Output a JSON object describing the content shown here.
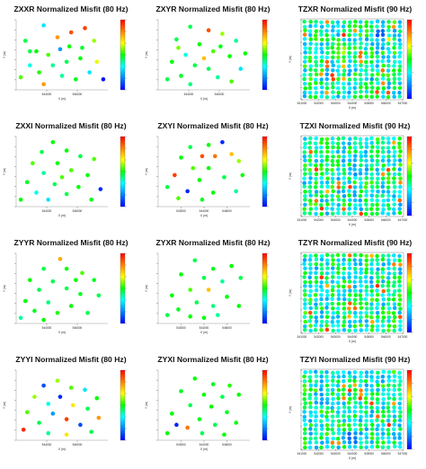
{
  "colors": {
    "colorbar_stops": [
      "#ff0000",
      "#ff8000",
      "#ffff00",
      "#00ff00",
      "#00ffff",
      "#0080ff",
      "#0000ff"
    ],
    "scatter_value_range": [
      0,
      1
    ]
  },
  "chart_data": [
    {
      "type": "scatter",
      "title": "ZXXR Normalized Misfit (80 Hz)",
      "xlabel": "X (m)",
      "ylabel": "Y (m)",
      "xticks": [
        "544000",
        "546000"
      ],
      "points": [
        {
          "x": 0.3,
          "y": 0.92,
          "v": 0.3
        },
        {
          "x": 0.45,
          "y": 0.75,
          "v": 0.8
        },
        {
          "x": 0.1,
          "y": 0.7,
          "v": 0.45
        },
        {
          "x": 0.22,
          "y": 0.55,
          "v": 0.5
        },
        {
          "x": 0.35,
          "y": 0.5,
          "v": 0.55
        },
        {
          "x": 0.6,
          "y": 0.82,
          "v": 0.9
        },
        {
          "x": 0.75,
          "y": 0.88,
          "v": 0.92
        },
        {
          "x": 0.85,
          "y": 0.7,
          "v": 0.6
        },
        {
          "x": 0.4,
          "y": 0.35,
          "v": 0.4
        },
        {
          "x": 0.55,
          "y": 0.4,
          "v": 0.45
        },
        {
          "x": 0.7,
          "y": 0.45,
          "v": 0.5
        },
        {
          "x": 0.88,
          "y": 0.4,
          "v": 0.65
        },
        {
          "x": 0.15,
          "y": 0.35,
          "v": 0.35
        },
        {
          "x": 0.25,
          "y": 0.25,
          "v": 0.52
        },
        {
          "x": 0.5,
          "y": 0.2,
          "v": 0.4
        },
        {
          "x": 0.65,
          "y": 0.15,
          "v": 0.48
        },
        {
          "x": 0.8,
          "y": 0.25,
          "v": 0.3
        },
        {
          "x": 0.95,
          "y": 0.15,
          "v": 0.02
        },
        {
          "x": 0.05,
          "y": 0.18,
          "v": 0.55
        },
        {
          "x": 0.3,
          "y": 0.08,
          "v": 0.8
        },
        {
          "x": 0.58,
          "y": 0.62,
          "v": 0.5
        },
        {
          "x": 0.48,
          "y": 0.58,
          "v": 0.2
        },
        {
          "x": 0.15,
          "y": 0.55,
          "v": 0.45
        },
        {
          "x": 0.72,
          "y": 0.6,
          "v": 0.47
        }
      ]
    },
    {
      "type": "scatter",
      "title": "ZXYR Normalized Misfit (80 Hz)",
      "xlabel": "X (m)",
      "ylabel": "Y (m)",
      "xticks": [
        "544000",
        "546000"
      ],
      "points": [
        {
          "x": 0.35,
          "y": 0.9,
          "v": 0.45
        },
        {
          "x": 0.55,
          "y": 0.85,
          "v": 0.9
        },
        {
          "x": 0.7,
          "y": 0.8,
          "v": 0.6
        },
        {
          "x": 0.2,
          "y": 0.72,
          "v": 0.45
        },
        {
          "x": 0.45,
          "y": 0.65,
          "v": 0.5
        },
        {
          "x": 0.85,
          "y": 0.7,
          "v": 0.4
        },
        {
          "x": 0.3,
          "y": 0.5,
          "v": 0.35
        },
        {
          "x": 0.6,
          "y": 0.55,
          "v": 0.55
        },
        {
          "x": 0.78,
          "y": 0.48,
          "v": 0.5
        },
        {
          "x": 0.15,
          "y": 0.4,
          "v": 0.5
        },
        {
          "x": 0.4,
          "y": 0.35,
          "v": 0.45
        },
        {
          "x": 0.55,
          "y": 0.3,
          "v": 0.45
        },
        {
          "x": 0.9,
          "y": 0.3,
          "v": 0.3
        },
        {
          "x": 0.25,
          "y": 0.2,
          "v": 0.48
        },
        {
          "x": 0.65,
          "y": 0.18,
          "v": 0.4
        },
        {
          "x": 0.8,
          "y": 0.12,
          "v": 0.55
        },
        {
          "x": 0.1,
          "y": 0.15,
          "v": 0.45
        },
        {
          "x": 0.35,
          "y": 0.08,
          "v": 0.42
        },
        {
          "x": 0.5,
          "y": 0.45,
          "v": 0.75
        },
        {
          "x": 0.68,
          "y": 0.62,
          "v": 0.48
        },
        {
          "x": 0.95,
          "y": 0.52,
          "v": 0.5
        },
        {
          "x": 0.22,
          "y": 0.6,
          "v": 0.58
        }
      ]
    },
    {
      "type": "scatter",
      "title": "TZXR Normalized Misfit (90 Hz)",
      "xlabel": "X (m)",
      "ylabel": "Y (m)",
      "xticks": [
        "541000",
        "542000",
        "543000",
        "544000",
        "545000",
        "546000",
        "547000"
      ],
      "grid_points": {
        "cols": 18,
        "rows": 18,
        "seed": 11,
        "hot_spots": [
          {
            "x": 0.78,
            "y": 0.8,
            "v": 0.05
          },
          {
            "x": 0.4,
            "y": 0.6,
            "v": 0.7
          }
        ]
      }
    },
    {
      "type": "scatter",
      "title": "ZXXI Normalized Misfit (80 Hz)",
      "xlabel": "X (m)",
      "ylabel": "Y (m)",
      "xticks": [
        "544000",
        "546000"
      ],
      "points": [
        {
          "x": 0.4,
          "y": 0.92,
          "v": 0.5
        },
        {
          "x": 0.28,
          "y": 0.78,
          "v": 0.45
        },
        {
          "x": 0.55,
          "y": 0.8,
          "v": 0.5
        },
        {
          "x": 0.7,
          "y": 0.72,
          "v": 0.45
        },
        {
          "x": 0.18,
          "y": 0.62,
          "v": 0.55
        },
        {
          "x": 0.45,
          "y": 0.62,
          "v": 0.5
        },
        {
          "x": 0.85,
          "y": 0.68,
          "v": 0.55
        },
        {
          "x": 0.3,
          "y": 0.48,
          "v": 0.4
        },
        {
          "x": 0.6,
          "y": 0.52,
          "v": 0.55
        },
        {
          "x": 0.78,
          "y": 0.45,
          "v": 0.5
        },
        {
          "x": 0.12,
          "y": 0.35,
          "v": 0.48
        },
        {
          "x": 0.42,
          "y": 0.32,
          "v": 0.45
        },
        {
          "x": 0.92,
          "y": 0.25,
          "v": 0.05
        },
        {
          "x": 0.22,
          "y": 0.2,
          "v": 0.35
        },
        {
          "x": 0.55,
          "y": 0.18,
          "v": 0.45
        },
        {
          "x": 0.05,
          "y": 0.1,
          "v": 0.5
        },
        {
          "x": 0.35,
          "y": 0.1,
          "v": 0.3
        },
        {
          "x": 0.68,
          "y": 0.28,
          "v": 0.5
        },
        {
          "x": 0.82,
          "y": 0.1,
          "v": 0.48
        },
        {
          "x": 0.5,
          "y": 0.42,
          "v": 0.55
        }
      ]
    },
    {
      "type": "scatter",
      "title": "ZXYI Normalized Misfit (80 Hz)",
      "xlabel": "X (m)",
      "ylabel": "Y (m)",
      "xticks": [
        "543000",
        "544000",
        "546000"
      ],
      "points": [
        {
          "x": 0.35,
          "y": 0.85,
          "v": 0.45
        },
        {
          "x": 0.55,
          "y": 0.88,
          "v": 0.5
        },
        {
          "x": 0.7,
          "y": 0.92,
          "v": 0.05
        },
        {
          "x": 0.8,
          "y": 0.75,
          "v": 0.75
        },
        {
          "x": 0.25,
          "y": 0.7,
          "v": 0.5
        },
        {
          "x": 0.48,
          "y": 0.72,
          "v": 0.9
        },
        {
          "x": 0.62,
          "y": 0.72,
          "v": 0.85
        },
        {
          "x": 0.88,
          "y": 0.65,
          "v": 0.6
        },
        {
          "x": 0.38,
          "y": 0.55,
          "v": 0.55
        },
        {
          "x": 0.55,
          "y": 0.55,
          "v": 0.5
        },
        {
          "x": 0.18,
          "y": 0.45,
          "v": 0.92
        },
        {
          "x": 0.45,
          "y": 0.38,
          "v": 0.5
        },
        {
          "x": 0.72,
          "y": 0.42,
          "v": 0.45
        },
        {
          "x": 0.1,
          "y": 0.28,
          "v": 0.45
        },
        {
          "x": 0.32,
          "y": 0.22,
          "v": 0.05
        },
        {
          "x": 0.6,
          "y": 0.2,
          "v": 0.5
        },
        {
          "x": 0.85,
          "y": 0.22,
          "v": 0.4
        },
        {
          "x": 0.22,
          "y": 0.12,
          "v": 0.55
        },
        {
          "x": 0.48,
          "y": 0.1,
          "v": 0.48
        },
        {
          "x": 0.92,
          "y": 0.45,
          "v": 0.5
        }
      ]
    },
    {
      "type": "scatter",
      "title": "TZXI Normalized Misfit (90 Hz)",
      "xlabel": "X (m)",
      "ylabel": "Y (m)",
      "xticks": [
        "541000",
        "542000",
        "543000",
        "544000",
        "545000",
        "546000",
        "547000"
      ],
      "grid_points": {
        "cols": 18,
        "rows": 18,
        "seed": 23,
        "hot_spots": [
          {
            "x": 0.55,
            "y": 0.55,
            "v": 0.15
          }
        ]
      }
    },
    {
      "type": "scatter",
      "title": "ZYYR Normalized Misfit (80 Hz)",
      "xlabel": "X (m)",
      "ylabel": "Y (m)",
      "xticks": [
        "544000",
        "546000"
      ],
      "points": [
        {
          "x": 0.48,
          "y": 0.92,
          "v": 0.78
        },
        {
          "x": 0.3,
          "y": 0.78,
          "v": 0.45
        },
        {
          "x": 0.55,
          "y": 0.78,
          "v": 0.5
        },
        {
          "x": 0.72,
          "y": 0.72,
          "v": 0.55
        },
        {
          "x": 0.15,
          "y": 0.62,
          "v": 0.5
        },
        {
          "x": 0.4,
          "y": 0.6,
          "v": 0.45
        },
        {
          "x": 0.85,
          "y": 0.62,
          "v": 0.48
        },
        {
          "x": 0.25,
          "y": 0.48,
          "v": 0.45
        },
        {
          "x": 0.55,
          "y": 0.5,
          "v": 0.45
        },
        {
          "x": 0.7,
          "y": 0.42,
          "v": 0.48
        },
        {
          "x": 0.9,
          "y": 0.4,
          "v": 0.45
        },
        {
          "x": 0.1,
          "y": 0.32,
          "v": 0.5
        },
        {
          "x": 0.35,
          "y": 0.3,
          "v": 0.42
        },
        {
          "x": 0.6,
          "y": 0.25,
          "v": 0.5
        },
        {
          "x": 0.2,
          "y": 0.18,
          "v": 0.48
        },
        {
          "x": 0.45,
          "y": 0.15,
          "v": 0.52
        },
        {
          "x": 0.05,
          "y": 0.08,
          "v": 0.4
        },
        {
          "x": 0.3,
          "y": 0.05,
          "v": 0.5
        },
        {
          "x": 0.78,
          "y": 0.15,
          "v": 0.45
        },
        {
          "x": 0.65,
          "y": 0.62,
          "v": 0.5
        }
      ]
    },
    {
      "type": "scatter",
      "title": "ZYXR Normalized Misfit (80 Hz)",
      "xlabel": "X (m)",
      "ylabel": "Y (m)",
      "xticks": [
        "543000",
        "544000",
        "546000"
      ],
      "points": [
        {
          "x": 0.4,
          "y": 0.9,
          "v": 0.45
        },
        {
          "x": 0.6,
          "y": 0.78,
          "v": 0.48
        },
        {
          "x": 0.8,
          "y": 0.82,
          "v": 0.5
        },
        {
          "x": 0.25,
          "y": 0.7,
          "v": 0.5
        },
        {
          "x": 0.5,
          "y": 0.65,
          "v": 0.45
        },
        {
          "x": 0.7,
          "y": 0.6,
          "v": 0.4
        },
        {
          "x": 0.9,
          "y": 0.65,
          "v": 0.45
        },
        {
          "x": 0.35,
          "y": 0.48,
          "v": 0.55
        },
        {
          "x": 0.55,
          "y": 0.48,
          "v": 0.75
        },
        {
          "x": 0.15,
          "y": 0.4,
          "v": 0.5
        },
        {
          "x": 0.75,
          "y": 0.38,
          "v": 0.5
        },
        {
          "x": 0.42,
          "y": 0.3,
          "v": 0.45
        },
        {
          "x": 0.6,
          "y": 0.25,
          "v": 0.42
        },
        {
          "x": 0.22,
          "y": 0.2,
          "v": 0.48
        },
        {
          "x": 0.88,
          "y": 0.25,
          "v": 0.5
        },
        {
          "x": 0.35,
          "y": 0.1,
          "v": 0.5
        },
        {
          "x": 0.1,
          "y": 0.12,
          "v": 0.45
        },
        {
          "x": 0.65,
          "y": 0.12,
          "v": 0.4
        },
        {
          "x": 0.5,
          "y": 0.08,
          "v": 0.5
        }
      ]
    },
    {
      "type": "scatter",
      "title": "TZYR Normalized Misfit (90 Hz)",
      "xlabel": "X (m)",
      "ylabel": "Y (m)",
      "xticks": [
        "541000",
        "542000",
        "543000",
        "544000",
        "545000",
        "546000",
        "547000"
      ],
      "grid_points": {
        "cols": 18,
        "rows": 18,
        "seed": 37,
        "hot_spots": [
          {
            "x": 0.5,
            "y": 0.72,
            "v": 0.25
          }
        ]
      }
    },
    {
      "type": "scatter",
      "title": "ZYYI Normalized Misfit (80 Hz)",
      "xlabel": "X (m)",
      "ylabel": "Y (m)",
      "xticks": [
        "544000",
        "546000"
      ],
      "points": [
        {
          "x": 0.45,
          "y": 0.85,
          "v": 0.6
        },
        {
          "x": 0.3,
          "y": 0.78,
          "v": 0.1
        },
        {
          "x": 0.6,
          "y": 0.75,
          "v": 0.55
        },
        {
          "x": 0.75,
          "y": 0.72,
          "v": 0.3
        },
        {
          "x": 0.2,
          "y": 0.62,
          "v": 0.6
        },
        {
          "x": 0.48,
          "y": 0.62,
          "v": 0.05
        },
        {
          "x": 0.88,
          "y": 0.6,
          "v": 0.5
        },
        {
          "x": 0.35,
          "y": 0.52,
          "v": 0.35
        },
        {
          "x": 0.62,
          "y": 0.5,
          "v": 0.7
        },
        {
          "x": 0.78,
          "y": 0.45,
          "v": 0.45
        },
        {
          "x": 0.12,
          "y": 0.4,
          "v": 0.55
        },
        {
          "x": 0.4,
          "y": 0.38,
          "v": 0.2
        },
        {
          "x": 0.55,
          "y": 0.3,
          "v": 0.92
        },
        {
          "x": 0.9,
          "y": 0.32,
          "v": 0.8
        },
        {
          "x": 0.25,
          "y": 0.25,
          "v": 0.45
        },
        {
          "x": 0.7,
          "y": 0.22,
          "v": 0.1
        },
        {
          "x": 0.08,
          "y": 0.15,
          "v": 0.95
        },
        {
          "x": 0.35,
          "y": 0.1,
          "v": 0.4
        },
        {
          "x": 0.55,
          "y": 0.08,
          "v": 0.7
        },
        {
          "x": 0.82,
          "y": 0.12,
          "v": 0.45
        }
      ]
    },
    {
      "type": "scatter",
      "title": "ZYXI Normalized Misfit (80 Hz)",
      "xlabel": "X (m)",
      "ylabel": "Y (m)",
      "xticks": [
        "543000",
        "544000",
        "546000"
      ],
      "points": [
        {
          "x": 0.4,
          "y": 0.88,
          "v": 0.5
        },
        {
          "x": 0.6,
          "y": 0.8,
          "v": 0.48
        },
        {
          "x": 0.78,
          "y": 0.78,
          "v": 0.52
        },
        {
          "x": 0.25,
          "y": 0.7,
          "v": 0.48
        },
        {
          "x": 0.5,
          "y": 0.65,
          "v": 0.5
        },
        {
          "x": 0.7,
          "y": 0.62,
          "v": 0.45
        },
        {
          "x": 0.88,
          "y": 0.65,
          "v": 0.5
        },
        {
          "x": 0.35,
          "y": 0.5,
          "v": 0.45
        },
        {
          "x": 0.58,
          "y": 0.48,
          "v": 0.5
        },
        {
          "x": 0.15,
          "y": 0.38,
          "v": 0.5
        },
        {
          "x": 0.75,
          "y": 0.4,
          "v": 0.48
        },
        {
          "x": 0.45,
          "y": 0.3,
          "v": 0.48
        },
        {
          "x": 0.2,
          "y": 0.22,
          "v": 0.05
        },
        {
          "x": 0.32,
          "y": 0.18,
          "v": 0.85
        },
        {
          "x": 0.62,
          "y": 0.22,
          "v": 0.45
        },
        {
          "x": 0.85,
          "y": 0.25,
          "v": 0.5
        },
        {
          "x": 0.1,
          "y": 0.1,
          "v": 0.5
        },
        {
          "x": 0.48,
          "y": 0.1,
          "v": 0.45
        },
        {
          "x": 0.72,
          "y": 0.08,
          "v": 0.5
        }
      ]
    },
    {
      "type": "scatter",
      "title": "TZYI Normalized Misfit (90 Hz)",
      "xlabel": "X (m)",
      "ylabel": "Y (m)",
      "xticks": [
        "541000",
        "542000",
        "543000",
        "544000",
        "545000",
        "546000",
        "547000"
      ],
      "grid_points": {
        "cols": 18,
        "rows": 18,
        "seed": 53,
        "hot_spots": [
          {
            "x": 0.5,
            "y": 0.15,
            "v": 0.05
          },
          {
            "x": 0.2,
            "y": 0.6,
            "v": 0.15
          }
        ]
      }
    }
  ]
}
